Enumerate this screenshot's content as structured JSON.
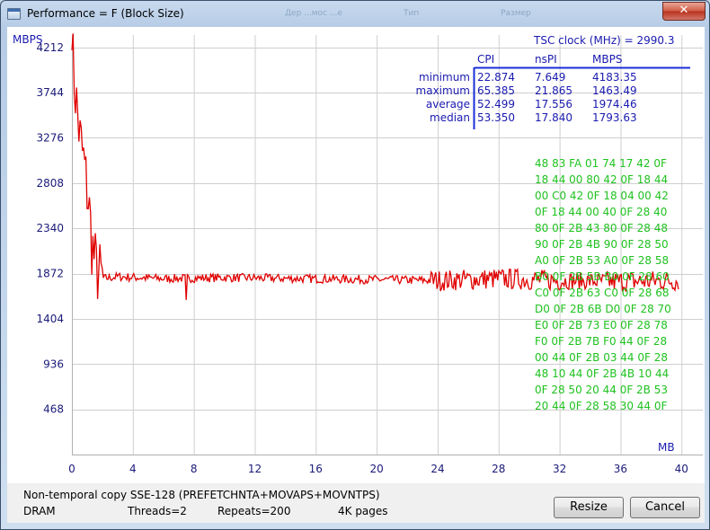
{
  "window": {
    "title": "Performance = F (Block Size)",
    "close_label": "✕",
    "ghost_items": [
      "Дер ...мос ...е",
      "Тип",
      "Размер"
    ]
  },
  "chart_data": {
    "type": "line",
    "title": "Performance = F (Block Size)",
    "ylabel": "MBPS",
    "xlabel": "MB",
    "xlim": [
      0,
      41.4
    ],
    "ylim": [
      0,
      4340
    ],
    "xticks": [
      0,
      4,
      8,
      12,
      16,
      20,
      24,
      28,
      32,
      36,
      40
    ],
    "yticks": [
      468,
      936,
      1404,
      1872,
      2340,
      2808,
      3276,
      3744,
      4212
    ],
    "series": [
      {
        "name": "MBPS",
        "color": "#e00000",
        "description_points": [
          [
            0,
            4183
          ],
          [
            0.2,
            3800
          ],
          [
            0.5,
            3300
          ],
          [
            0.8,
            3000
          ],
          [
            1.1,
            2600
          ],
          [
            1.3,
            2200
          ],
          [
            1.6,
            1900
          ],
          [
            2.0,
            1820
          ],
          [
            3,
            1840
          ],
          [
            6,
            1820
          ],
          [
            10,
            1830
          ],
          [
            20,
            1810
          ],
          [
            24,
            1800
          ],
          [
            28,
            1820
          ],
          [
            32,
            1800
          ],
          [
            36,
            1790
          ],
          [
            39.8,
            1800
          ]
        ]
      }
    ]
  },
  "tsc": {
    "label": "TSC clock (MHz)  = 2990.3"
  },
  "stats": {
    "columns": [
      "CPI",
      "nsPI",
      "MBPS"
    ],
    "rows": [
      {
        "label": "minimum",
        "cpi": "22.874",
        "nspi": "7.649",
        "mbps": "4183.35"
      },
      {
        "label": "maximum",
        "cpi": "65.385",
        "nspi": "21.865",
        "mbps": "1463.49"
      },
      {
        "label": "average",
        "cpi": "52.499",
        "nspi": "17.556",
        "mbps": "1974.46"
      },
      {
        "label": "median",
        "cpi": "53.350",
        "nspi": "17.840",
        "mbps": "1793.63"
      }
    ]
  },
  "hexdump": [
    "48  83  FA  01  74  17  42  0F",
    "18  44  00  80  42  0F  18  44",
    "00  C0  42  0F  18  04  00  42",
    "0F  18  44  00  40  0F  28  40",
    "80  0F  2B  43  80  0F  28  48",
    "90  0F  2B  4B  90  0F  28  50",
    "A0  0F  2B  53  A0  0F  28  58",
    "B0  0F  2B  5B  B0  0F  28  60",
    "C0  0F  2B  63  C0  0F  28  68",
    "D0  0F  2B  6B  D0  0F  28  70",
    "E0  0F  2B  73  E0  0F  28  78",
    "F0  0F  2B  7B  F0  44  0F  28",
    "00  44  0F  2B  03  44  0F  28",
    "48  10  44  0F  2B  4B  10  44",
    "0F  28  50  20  44  0F  2B  53",
    "20  44  0F  28  58  30  44  0F"
  ],
  "footer": {
    "test_name": "Non-temporal copy SSE-128 (PREFETCHNTA+MOVAPS+MOVNTPS)",
    "memory": "DRAM",
    "threads": "Threads=2",
    "repeats": "Repeats=200",
    "pages": "4K pages",
    "resize_label": "Resize",
    "cancel_label": "Cancel"
  }
}
